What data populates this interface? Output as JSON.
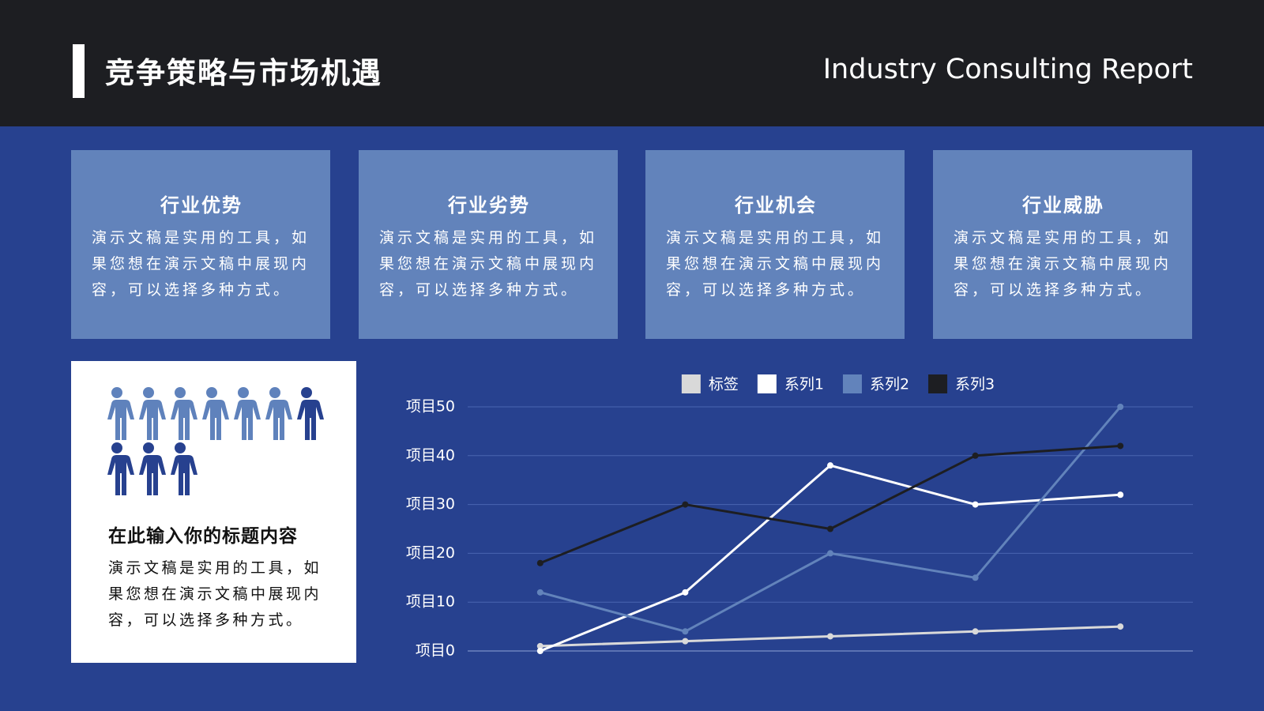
{
  "header": {
    "title": "竞争策略与市场机遇",
    "subtitle": "Industry Consulting Report"
  },
  "cards": [
    {
      "title": "行业优势",
      "text": "演示文稿是实用的工具，如果您想在演示文稿中展现内容，可以选择多种方式。"
    },
    {
      "title": "行业劣势",
      "text": "演示文稿是实用的工具，如果您想在演示文稿中展现内容，可以选择多种方式。"
    },
    {
      "title": "行业机会",
      "text": "演示文稿是实用的工具，如果您想在演示文稿中展现内容，可以选择多种方式。"
    },
    {
      "title": "行业威胁",
      "text": "演示文稿是实用的工具，如果您想在演示文稿中展现内容，可以选择多种方式。"
    }
  ],
  "panel": {
    "title": "在此输入你的标题内容",
    "text": "演示文稿是实用的工具，如果您想在演示文稿中展现内容，可以选择多种方式。"
  },
  "chart_data": {
    "type": "line",
    "categories": [
      null,
      null,
      null,
      null,
      null
    ],
    "series": [
      {
        "name": "标签",
        "color": "#d9d9d9",
        "values": [
          1,
          2,
          3,
          4,
          5
        ]
      },
      {
        "name": "系列1",
        "color": "#ffffff",
        "values": [
          0,
          12,
          38,
          30,
          32
        ]
      },
      {
        "name": "系列2",
        "color": "#6283bb",
        "values": [
          12,
          4,
          20,
          15,
          50
        ]
      },
      {
        "name": "系列3",
        "color": "#1d1e22",
        "values": [
          18,
          30,
          25,
          40,
          42
        ]
      }
    ],
    "ylim": [
      0,
      50
    ],
    "yticks": [
      {
        "value": 0,
        "label": "项目0"
      },
      {
        "value": 10,
        "label": "项目10"
      },
      {
        "value": 20,
        "label": "项目20"
      },
      {
        "value": 30,
        "label": "项目30"
      },
      {
        "value": 40,
        "label": "项目40"
      },
      {
        "value": 50,
        "label": "项目50"
      }
    ],
    "grid": true,
    "legend": "top"
  }
}
